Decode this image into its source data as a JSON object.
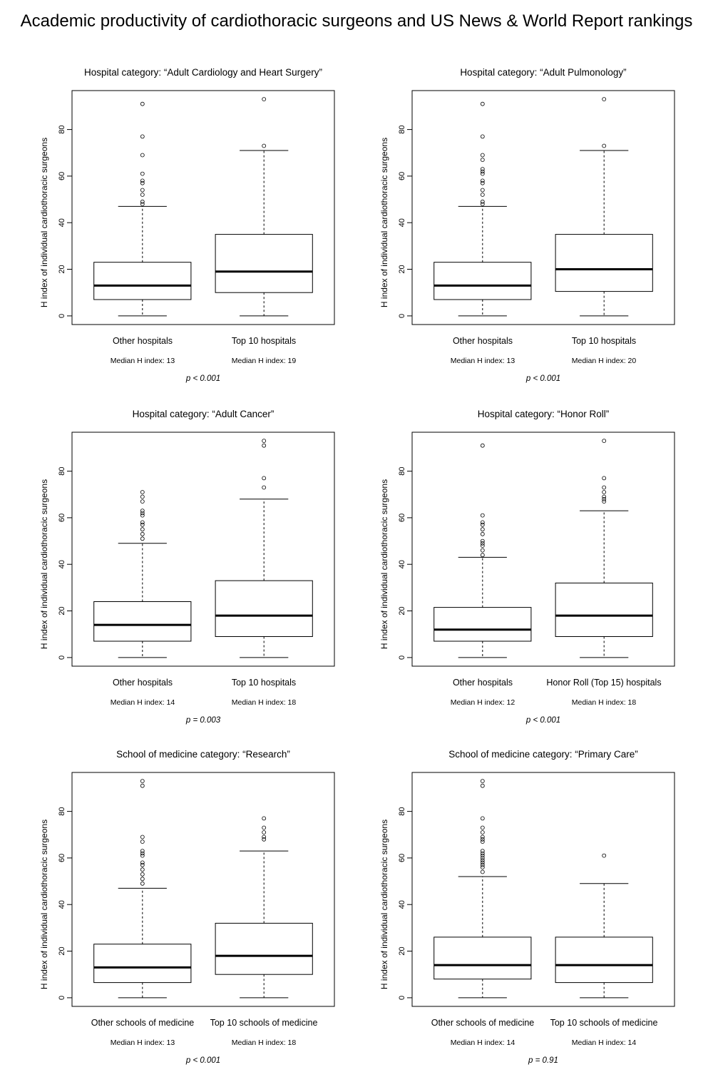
{
  "title": "Academic productivity of cardiothoracic surgeons and US News & World Report rankings",
  "chart_data": [
    {
      "type": "boxplot",
      "title": "Hospital category: “Adult Cardiology and Heart Surgery”",
      "ylabel": "H index of individual cardiothoracic surgeons",
      "ylim": [
        -3.72,
        96.72
      ],
      "yticks": [
        0,
        20,
        40,
        60,
        80
      ],
      "grid": false,
      "groups": [
        {
          "name": "Other hospitals",
          "median_label": "Median H index: 13",
          "whisker_low": 0,
          "q1": 7,
          "median": 13,
          "q3": 23,
          "whisker_high": 47,
          "outliers": [
            91,
            77,
            69,
            61,
            58,
            57,
            54,
            52,
            49,
            48
          ]
        },
        {
          "name": "Top 10 hospitals",
          "median_label": "Median H index: 19",
          "whisker_low": 0,
          "q1": 10,
          "median": 19,
          "q3": 35,
          "whisker_high": 71,
          "outliers": [
            93,
            73
          ]
        }
      ],
      "p_value": "p < 0.001"
    },
    {
      "type": "boxplot",
      "title": "Hospital category: “Adult Pulmonology”",
      "ylabel": "H index of individual cardiothoracic surgeons",
      "ylim": [
        -3.72,
        96.72
      ],
      "yticks": [
        0,
        20,
        40,
        60,
        80
      ],
      "grid": false,
      "groups": [
        {
          "name": "Other hospitals",
          "median_label": "Median H index: 13",
          "whisker_low": 0,
          "q1": 7,
          "median": 13,
          "q3": 23,
          "whisker_high": 47,
          "outliers": [
            91,
            77,
            69,
            67,
            63,
            62,
            61,
            58,
            57,
            54,
            52,
            49,
            48
          ]
        },
        {
          "name": "Top 10 hospitals",
          "median_label": "Median H index: 20",
          "whisker_low": 0,
          "q1": 10.5,
          "median": 20,
          "q3": 35,
          "whisker_high": 71,
          "outliers": [
            93,
            73
          ]
        }
      ],
      "p_value": "p < 0.001"
    },
    {
      "type": "boxplot",
      "title": "Hospital category: “Adult Cancer”",
      "ylabel": "H index of individual cardiothoracic surgeons",
      "ylim": [
        -3.72,
        96.72
      ],
      "yticks": [
        0,
        20,
        40,
        60,
        80
      ],
      "grid": false,
      "groups": [
        {
          "name": "Other hospitals",
          "median_label": "Median H index: 14",
          "whisker_low": 0,
          "q1": 7,
          "median": 14,
          "q3": 24,
          "whisker_high": 49,
          "outliers": [
            71,
            69,
            67,
            63,
            62,
            61,
            58,
            57,
            55,
            53,
            51
          ]
        },
        {
          "name": "Top 10 hospitals",
          "median_label": "Median H index: 18",
          "whisker_low": 0,
          "q1": 9,
          "median": 18,
          "q3": 33,
          "whisker_high": 68,
          "outliers": [
            93,
            91,
            77,
            73
          ]
        }
      ],
      "p_value": "p = 0.003"
    },
    {
      "type": "boxplot",
      "title": "Hospital category: “Honor Roll”",
      "ylabel": "H index of individual cardiothoracic surgeons",
      "ylim": [
        -3.72,
        96.72
      ],
      "yticks": [
        0,
        20,
        40,
        60,
        80
      ],
      "grid": false,
      "groups": [
        {
          "name": "Other hospitals",
          "median_label": "Median H index: 12",
          "whisker_low": 0,
          "q1": 7,
          "median": 12,
          "q3": 21.5,
          "whisker_high": 43,
          "outliers": [
            91,
            61,
            58,
            57,
            55,
            53,
            50,
            49,
            48,
            46,
            44
          ]
        },
        {
          "name": "Honor Roll (Top 15) hospitals",
          "median_label": "Median H index: 18",
          "whisker_low": 0,
          "q1": 9,
          "median": 18,
          "q3": 32,
          "whisker_high": 63,
          "outliers": [
            93,
            77,
            73,
            71,
            69,
            68,
            67
          ]
        }
      ],
      "p_value": "p < 0.001"
    },
    {
      "type": "boxplot",
      "title": "School of medicine category: “Research”",
      "ylabel": "H index of individual cardiothoracic surgeons",
      "ylim": [
        -3.72,
        96.72
      ],
      "yticks": [
        0,
        20,
        40,
        60,
        80
      ],
      "grid": false,
      "groups": [
        {
          "name": "Other schools of medicine",
          "median_label": "Median H index: 13",
          "whisker_low": 0,
          "q1": 6.5,
          "median": 13,
          "q3": 23,
          "whisker_high": 47,
          "outliers": [
            93,
            91,
            69,
            67,
            63,
            62,
            61,
            58,
            57,
            55,
            53,
            51,
            49
          ]
        },
        {
          "name": "Top 10 schools of medicine",
          "median_label": "Median H index: 18",
          "whisker_low": 0,
          "q1": 10,
          "median": 18,
          "q3": 32,
          "whisker_high": 63,
          "outliers": [
            77,
            73,
            71,
            69,
            68
          ]
        }
      ],
      "p_value": "p < 0.001"
    },
    {
      "type": "boxplot",
      "title": "School of medicine category: “Primary Care”",
      "ylabel": "H index of individual cardiothoracic surgeons",
      "ylim": [
        -3.72,
        96.72
      ],
      "yticks": [
        0,
        20,
        40,
        60,
        80
      ],
      "grid": false,
      "groups": [
        {
          "name": "Other schools of medicine",
          "median_label": "Median H index: 14",
          "whisker_low": 0,
          "q1": 8,
          "median": 14,
          "q3": 26,
          "whisker_high": 52,
          "outliers": [
            93,
            91,
            77,
            73,
            71,
            69,
            68,
            67,
            63,
            62,
            61,
            60,
            59,
            58,
            57,
            56,
            54
          ]
        },
        {
          "name": "Top 10 schools of medicine",
          "median_label": "Median H index: 14",
          "whisker_low": 0,
          "q1": 6.5,
          "median": 14,
          "q3": 26,
          "whisker_high": 49,
          "outliers": [
            61
          ]
        }
      ],
      "p_value": "p = 0.91"
    }
  ]
}
